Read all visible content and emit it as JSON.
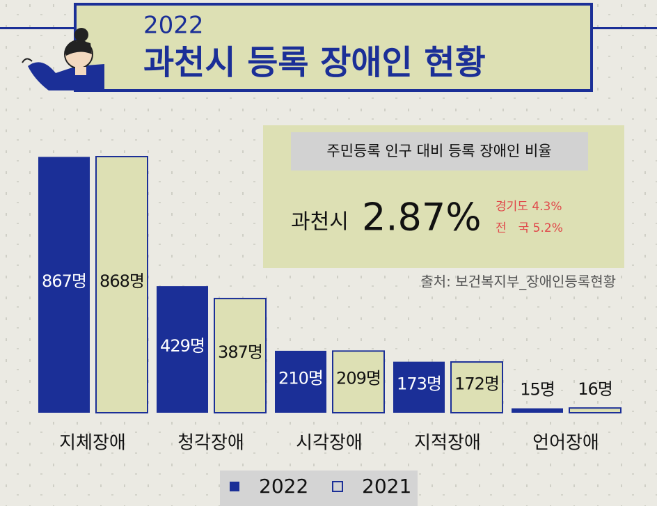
{
  "chart_data": {
    "type": "bar",
    "subtitle": "2022",
    "title": "과천시 등록 장애인 현황",
    "categories": [
      "지체장애",
      "청각장애",
      "시각장애",
      "지적장애",
      "언어장애"
    ],
    "series": [
      {
        "name": "2022",
        "color": "#1b2f97",
        "values": [
          867,
          429,
          210,
          173,
          15
        ],
        "value_labels": [
          "867명",
          "429명",
          "210명",
          "173명",
          "15명"
        ]
      },
      {
        "name": "2021",
        "color": "#dde0b4",
        "values": [
          868,
          387,
          209,
          172,
          16
        ],
        "value_labels": [
          "868명",
          "387명",
          "209명",
          "172명",
          "16명"
        ]
      }
    ],
    "info_box": {
      "heading": "주민등록 인구 대비 등록 장애인 비율",
      "city": "과천시",
      "city_rate": "2.87%",
      "province": "경기도 4.3%",
      "nation": "전　국 5.2%"
    },
    "source": "출처: 보건복지부_장애인등록현황"
  }
}
